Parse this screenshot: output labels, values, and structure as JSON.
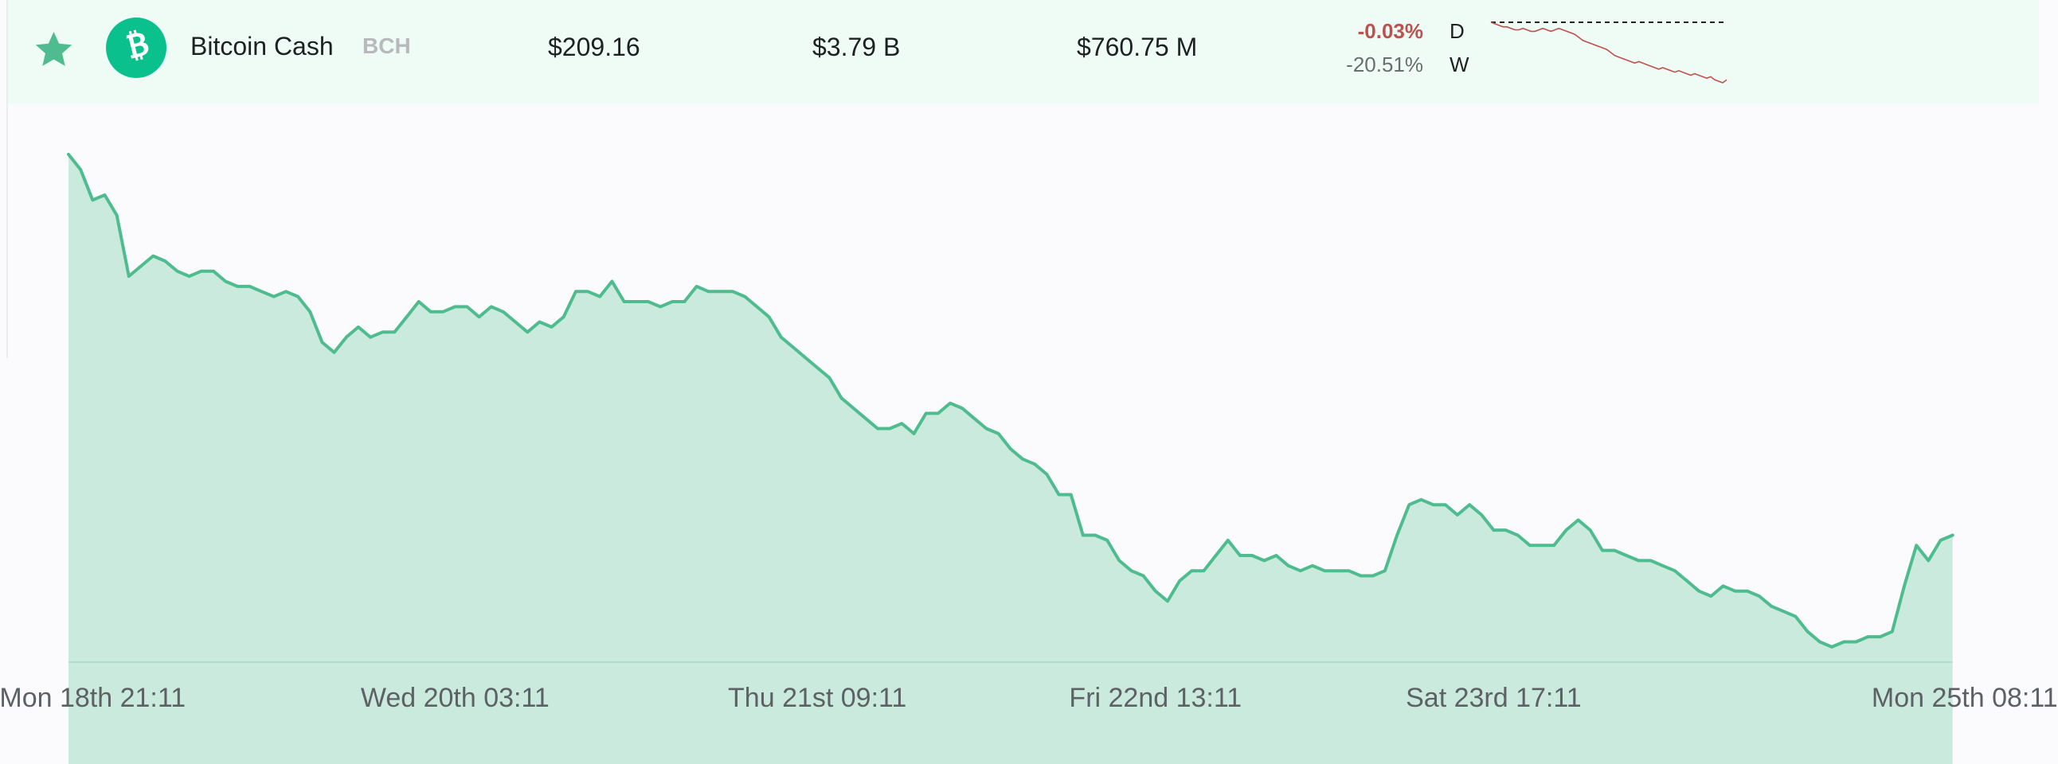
{
  "coin_row": {
    "name": "Bitcoin Cash",
    "symbol": "BCH",
    "price": "$209.16",
    "market_cap": "$3.79 B",
    "volume": "$760.75 M",
    "change_day": "-0.03%",
    "change_week": "-20.51%",
    "day_label": "D",
    "week_label": "W",
    "favorite_icon": "star-icon",
    "coin_icon": "bitcoin-cash-logo-icon"
  },
  "colors": {
    "row_bg": "#effcf5",
    "accent": "#4ebc8e",
    "area_fill": "#c9eadc",
    "negative": "#c0504d",
    "coin": "#0ac18e"
  },
  "chart_data": {
    "type": "area",
    "title": "",
    "xlabel": "",
    "ylabel": "",
    "grid": false,
    "x_tick_labels": [
      "Mon 18th 21:11",
      "Wed 20th 03:11",
      "Thu 21st 09:11",
      "Fri 22nd 13:11",
      "Sat 23rd 17:11",
      "Mon 25th 08:11"
    ],
    "x_tick_hours": [
      0,
      30,
      60,
      88,
      116,
      155
    ],
    "x_range_hours": [
      -2,
      156
    ],
    "x_unit": "hours",
    "ylim": [
      0,
      100
    ],
    "y_unit": "relative price level (no y-axis printed)",
    "series": [
      {
        "values": [
          [
            -2,
            100
          ],
          [
            -1,
            97
          ],
          [
            0,
            91
          ],
          [
            1,
            92
          ],
          [
            2,
            88
          ],
          [
            3,
            76
          ],
          [
            4,
            78
          ],
          [
            5,
            80
          ],
          [
            6,
            79
          ],
          [
            7,
            77
          ],
          [
            8,
            76
          ],
          [
            9,
            77
          ],
          [
            10,
            77
          ],
          [
            11,
            75
          ],
          [
            12,
            74
          ],
          [
            13,
            74
          ],
          [
            14,
            73
          ],
          [
            15,
            72
          ],
          [
            16,
            73
          ],
          [
            17,
            72
          ],
          [
            18,
            69
          ],
          [
            19,
            63
          ],
          [
            20,
            61
          ],
          [
            21,
            64
          ],
          [
            22,
            66
          ],
          [
            23,
            64
          ],
          [
            24,
            65
          ],
          [
            25,
            65
          ],
          [
            26,
            68
          ],
          [
            27,
            71
          ],
          [
            28,
            69
          ],
          [
            29,
            69
          ],
          [
            30,
            70
          ],
          [
            31,
            70
          ],
          [
            32,
            68
          ],
          [
            33,
            70
          ],
          [
            34,
            69
          ],
          [
            35,
            67
          ],
          [
            36,
            65
          ],
          [
            37,
            67
          ],
          [
            38,
            66
          ],
          [
            39,
            68
          ],
          [
            40,
            73
          ],
          [
            41,
            73
          ],
          [
            42,
            72
          ],
          [
            43,
            75
          ],
          [
            44,
            71
          ],
          [
            45,
            71
          ],
          [
            46,
            71
          ],
          [
            47,
            70
          ],
          [
            48,
            71
          ],
          [
            49,
            71
          ],
          [
            50,
            74
          ],
          [
            51,
            73
          ],
          [
            52,
            73
          ],
          [
            53,
            73
          ],
          [
            54,
            72
          ],
          [
            55,
            70
          ],
          [
            56,
            68
          ],
          [
            57,
            64
          ],
          [
            58,
            62
          ],
          [
            59,
            60
          ],
          [
            60,
            58
          ],
          [
            61,
            56
          ],
          [
            62,
            52
          ],
          [
            63,
            50
          ],
          [
            64,
            48
          ],
          [
            65,
            46
          ],
          [
            66,
            46
          ],
          [
            67,
            47
          ],
          [
            68,
            45
          ],
          [
            69,
            49
          ],
          [
            70,
            49
          ],
          [
            71,
            51
          ],
          [
            72,
            50
          ],
          [
            73,
            48
          ],
          [
            74,
            46
          ],
          [
            75,
            45
          ],
          [
            76,
            42
          ],
          [
            77,
            40
          ],
          [
            78,
            39
          ],
          [
            79,
            37
          ],
          [
            80,
            33
          ],
          [
            81,
            33
          ],
          [
            82,
            25
          ],
          [
            83,
            25
          ],
          [
            84,
            24
          ],
          [
            85,
            20
          ],
          [
            86,
            18
          ],
          [
            87,
            17
          ],
          [
            88,
            14
          ],
          [
            89,
            12
          ],
          [
            90,
            16
          ],
          [
            91,
            18
          ],
          [
            92,
            18
          ],
          [
            93,
            21
          ],
          [
            94,
            24
          ],
          [
            95,
            21
          ],
          [
            96,
            21
          ],
          [
            97,
            20
          ],
          [
            98,
            21
          ],
          [
            99,
            19
          ],
          [
            100,
            18
          ],
          [
            101,
            19
          ],
          [
            102,
            18
          ],
          [
            103,
            18
          ],
          [
            104,
            18
          ],
          [
            105,
            17
          ],
          [
            106,
            17
          ],
          [
            107,
            18
          ],
          [
            108,
            25
          ],
          [
            109,
            31
          ],
          [
            110,
            32
          ],
          [
            111,
            31
          ],
          [
            112,
            31
          ],
          [
            113,
            29
          ],
          [
            114,
            31
          ],
          [
            115,
            29
          ],
          [
            116,
            26
          ],
          [
            117,
            26
          ],
          [
            118,
            25
          ],
          [
            119,
            23
          ],
          [
            120,
            23
          ],
          [
            121,
            23
          ],
          [
            122,
            26
          ],
          [
            123,
            28
          ],
          [
            124,
            26
          ],
          [
            125,
            22
          ],
          [
            126,
            22
          ],
          [
            127,
            21
          ],
          [
            128,
            20
          ],
          [
            129,
            20
          ],
          [
            130,
            19
          ],
          [
            131,
            18
          ],
          [
            132,
            16
          ],
          [
            133,
            14
          ],
          [
            134,
            13
          ],
          [
            135,
            15
          ],
          [
            136,
            14
          ],
          [
            137,
            14
          ],
          [
            138,
            13
          ],
          [
            139,
            11
          ],
          [
            140,
            10
          ],
          [
            141,
            9
          ],
          [
            142,
            6
          ],
          [
            143,
            4
          ],
          [
            144,
            3
          ],
          [
            145,
            4
          ],
          [
            146,
            4
          ],
          [
            147,
            5
          ],
          [
            148,
            5
          ],
          [
            149,
            6
          ],
          [
            150,
            15
          ],
          [
            151,
            23
          ],
          [
            152,
            20
          ],
          [
            153,
            24
          ],
          [
            154,
            25
          ]
        ]
      }
    ]
  },
  "sparkline": {
    "values": [
      100,
      99,
      98,
      97,
      97,
      96,
      95,
      95,
      96,
      95,
      94,
      94,
      95,
      96,
      95,
      94,
      95,
      96,
      95,
      94,
      93,
      92,
      90,
      88,
      87,
      86,
      85,
      84,
      83,
      82,
      80,
      78,
      77,
      76,
      75,
      74,
      73,
      74,
      73,
      72,
      71,
      70,
      69,
      70,
      69,
      68,
      67,
      68,
      67,
      66,
      65,
      66,
      65,
      64,
      63,
      64,
      62,
      61,
      60,
      62
    ],
    "baseline_dashed": true
  }
}
